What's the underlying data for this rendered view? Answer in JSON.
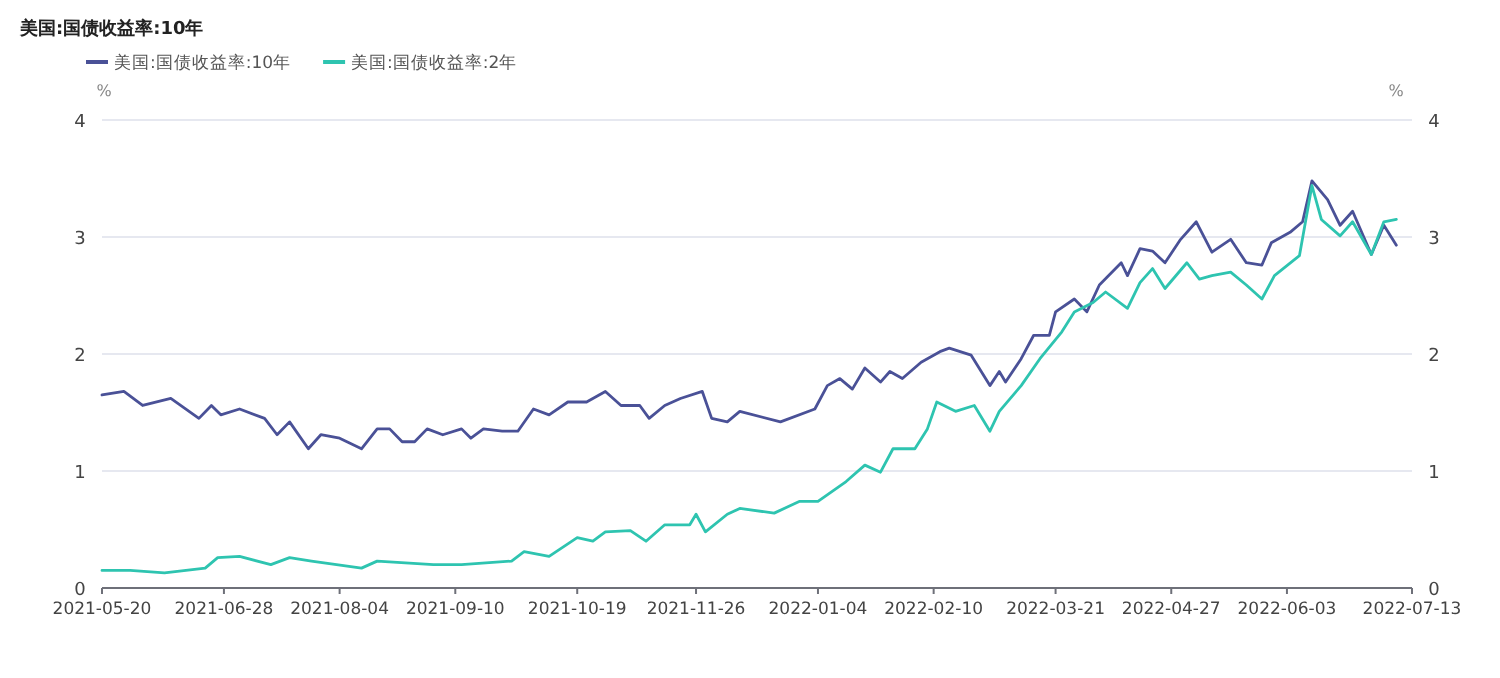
{
  "chart_data": {
    "type": "line",
    "title": "美国:国债收益率:10年",
    "ylabel": "%",
    "y2label": "%",
    "legend": "top left",
    "grid": "y",
    "marker": "none",
    "line_style": "solid",
    "xlim": [
      "2021-05-20",
      "2022-07-13"
    ],
    "xticks": [
      "2021-05-20",
      "2021-06-28",
      "2021-08-04",
      "2021-09-10",
      "2021-10-19",
      "2021-11-26",
      "2022-01-04",
      "2022-02-10",
      "2022-03-21",
      "2022-04-27",
      "2022-06-03",
      "2022-07-13"
    ],
    "ylim": [
      0,
      4
    ],
    "yticks": [
      0,
      1,
      2,
      3,
      4
    ],
    "y2lim": [
      0,
      4
    ],
    "y2ticks": [
      0,
      1,
      2,
      3,
      4
    ],
    "series": [
      {
        "name": "美国:国债收益率:10年",
        "color": "#4a5197",
        "x": [
          "2021-05-20",
          "2021-05-27",
          "2021-06-02",
          "2021-06-11",
          "2021-06-20",
          "2021-06-24",
          "2021-06-27",
          "2021-07-03",
          "2021-07-11",
          "2021-07-15",
          "2021-07-19",
          "2021-07-25",
          "2021-07-29",
          "2021-08-04",
          "2021-08-11",
          "2021-08-16",
          "2021-08-20",
          "2021-08-24",
          "2021-08-28",
          "2021-09-01",
          "2021-09-06",
          "2021-09-12",
          "2021-09-15",
          "2021-09-19",
          "2021-09-25",
          "2021-09-30",
          "2021-10-05",
          "2021-10-10",
          "2021-10-16",
          "2021-10-22",
          "2021-10-28",
          "2021-11-02",
          "2021-11-08",
          "2021-11-11",
          "2021-11-16",
          "2021-11-21",
          "2021-11-28",
          "2021-12-01",
          "2021-12-06",
          "2021-12-10",
          "2021-12-23",
          "2022-01-03",
          "2022-01-07",
          "2022-01-11",
          "2022-01-15",
          "2022-01-19",
          "2022-01-24",
          "2022-01-27",
          "2022-01-31",
          "2022-02-06",
          "2022-02-12",
          "2022-02-15",
          "2022-02-22",
          "2022-02-28",
          "2022-03-03",
          "2022-03-05",
          "2022-03-10",
          "2022-03-14",
          "2022-03-19",
          "2022-03-21",
          "2022-03-27",
          "2022-03-31",
          "2022-04-04",
          "2022-04-11",
          "2022-04-13",
          "2022-04-17",
          "2022-04-21",
          "2022-04-25",
          "2022-04-30",
          "2022-05-05",
          "2022-05-10",
          "2022-05-16",
          "2022-05-21",
          "2022-05-26",
          "2022-05-29",
          "2022-06-04",
          "2022-06-08",
          "2022-06-11",
          "2022-06-16",
          "2022-06-20",
          "2022-06-24",
          "2022-06-30",
          "2022-07-04",
          "2022-07-08"
        ],
        "values": [
          1.65,
          1.68,
          1.56,
          1.62,
          1.45,
          1.56,
          1.48,
          1.53,
          1.45,
          1.31,
          1.42,
          1.19,
          1.31,
          1.28,
          1.19,
          1.36,
          1.36,
          1.25,
          1.25,
          1.36,
          1.31,
          1.36,
          1.28,
          1.36,
          1.34,
          1.34,
          1.53,
          1.48,
          1.59,
          1.59,
          1.68,
          1.56,
          1.56,
          1.45,
          1.56,
          1.62,
          1.68,
          1.45,
          1.42,
          1.51,
          1.42,
          1.53,
          1.73,
          1.79,
          1.7,
          1.88,
          1.76,
          1.85,
          1.79,
          1.93,
          2.02,
          2.05,
          1.99,
          1.73,
          1.85,
          1.76,
          1.96,
          2.16,
          2.16,
          2.36,
          2.47,
          2.36,
          2.59,
          2.78,
          2.67,
          2.9,
          2.88,
          2.78,
          2.98,
          3.13,
          2.87,
          2.98,
          2.78,
          2.76,
          2.95,
          3.04,
          3.13,
          3.48,
          3.32,
          3.1,
          3.22,
          2.85,
          3.1,
          2.93
        ]
      },
      {
        "name": "美国:国债收益率:2年",
        "color": "#2ec4b0",
        "x": [
          "2021-05-20",
          "2021-05-29",
          "2021-06-09",
          "2021-06-22",
          "2021-06-26",
          "2021-07-03",
          "2021-07-13",
          "2021-07-19",
          "2021-07-26",
          "2021-08-11",
          "2021-08-16",
          "2021-09-03",
          "2021-09-12",
          "2021-09-28",
          "2021-10-02",
          "2021-10-10",
          "2021-10-19",
          "2021-10-24",
          "2021-10-28",
          "2021-11-05",
          "2021-11-10",
          "2021-11-16",
          "2021-11-24",
          "2021-11-26",
          "2021-11-29",
          "2021-12-06",
          "2021-12-10",
          "2021-12-21",
          "2021-12-29",
          "2022-01-04",
          "2022-01-13",
          "2022-01-19",
          "2022-01-24",
          "2022-01-28",
          "2022-02-04",
          "2022-02-08",
          "2022-02-11",
          "2022-02-17",
          "2022-02-23",
          "2022-02-28",
          "2022-03-03",
          "2022-03-10",
          "2022-03-16",
          "2022-03-23",
          "2022-03-27",
          "2022-04-02",
          "2022-04-06",
          "2022-04-13",
          "2022-04-17",
          "2022-04-21",
          "2022-04-25",
          "2022-05-02",
          "2022-05-06",
          "2022-05-10",
          "2022-05-16",
          "2022-05-21",
          "2022-05-26",
          "2022-05-30",
          "2022-06-07",
          "2022-06-11",
          "2022-06-14",
          "2022-06-20",
          "2022-06-24",
          "2022-06-30",
          "2022-07-04",
          "2022-07-08"
        ],
        "values": [
          0.15,
          0.15,
          0.13,
          0.17,
          0.26,
          0.27,
          0.2,
          0.26,
          0.23,
          0.17,
          0.23,
          0.2,
          0.2,
          0.23,
          0.31,
          0.27,
          0.43,
          0.4,
          0.48,
          0.49,
          0.4,
          0.54,
          0.54,
          0.63,
          0.48,
          0.63,
          0.68,
          0.64,
          0.74,
          0.74,
          0.91,
          1.05,
          0.99,
          1.19,
          1.19,
          1.36,
          1.59,
          1.51,
          1.56,
          1.34,
          1.51,
          1.73,
          1.96,
          2.19,
          2.36,
          2.44,
          2.53,
          2.39,
          2.61,
          2.73,
          2.56,
          2.78,
          2.64,
          2.67,
          2.7,
          2.59,
          2.47,
          2.67,
          2.84,
          3.44,
          3.15,
          3.01,
          3.13,
          2.85,
          3.13,
          3.15
        ]
      }
    ]
  }
}
